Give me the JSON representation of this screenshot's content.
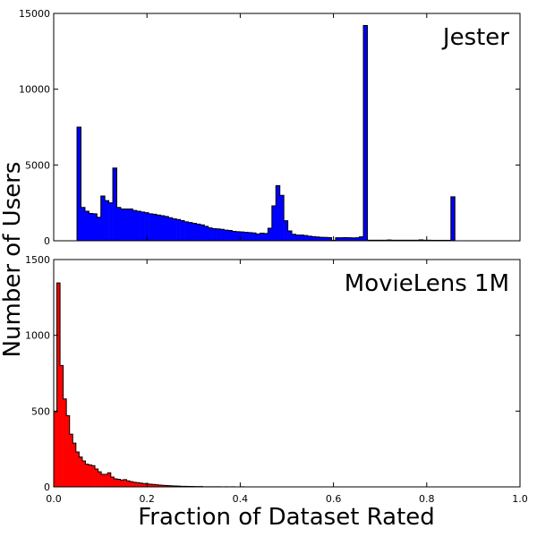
{
  "chart_data": [
    {
      "type": "bar",
      "subtype": "histogram",
      "annotation": "Jester",
      "color": "#0000ff",
      "bin_start": 0.05,
      "bin_width": 0.00853,
      "values": [
        7500,
        2200,
        1950,
        1800,
        1780,
        1550,
        2950,
        2650,
        2500,
        4800,
        2200,
        2100,
        2100,
        2100,
        2000,
        1950,
        1900,
        1850,
        1780,
        1750,
        1700,
        1650,
        1600,
        1520,
        1450,
        1400,
        1330,
        1250,
        1200,
        1150,
        1100,
        1050,
        950,
        850,
        800,
        780,
        750,
        700,
        680,
        620,
        600,
        580,
        560,
        540,
        520,
        450,
        500,
        480,
        830,
        2300,
        3640,
        3000,
        1320,
        650,
        430,
        380,
        380,
        350,
        300,
        270,
        250,
        230,
        220,
        210,
        30,
        200,
        200,
        210,
        200,
        190,
        200,
        260,
        14200,
        40,
        40,
        40,
        40,
        40,
        50,
        40,
        40,
        40,
        40,
        40,
        40,
        40,
        60,
        40,
        40,
        30,
        30,
        30,
        30,
        30,
        2900
      ],
      "xlim": [
        0,
        1.0
      ],
      "ylim": [
        0,
        15000
      ],
      "yticks": [
        "0",
        "5000",
        "10000",
        "15000"
      ],
      "ytick_values": [
        0,
        5000,
        10000,
        15000
      ]
    },
    {
      "type": "bar",
      "subtype": "histogram",
      "annotation": "MovieLens 1M",
      "color": "#ff0000",
      "bin_start": 0.0,
      "bin_width": 0.0068,
      "values": [
        496,
        1346,
        801,
        580,
        470,
        348,
        289,
        230,
        197,
        171,
        150,
        145,
        140,
        118,
        100,
        83,
        83,
        93,
        65,
        53,
        50,
        45,
        48,
        40,
        35,
        30,
        28,
        25,
        22,
        20,
        18,
        16,
        14,
        12,
        10,
        9,
        8,
        7,
        6,
        5,
        4,
        4,
        3,
        3,
        2,
        2,
        2,
        1,
        1,
        1,
        1,
        1,
        1,
        0,
        1,
        0,
        1,
        0,
        0,
        1
      ],
      "xlim": [
        0,
        1.0
      ],
      "ylim": [
        0,
        1500
      ],
      "yticks": [
        "0",
        "500",
        "1000",
        "1500"
      ],
      "ytick_values": [
        0,
        500,
        1000,
        1500
      ]
    }
  ],
  "xticks": [
    "0.0",
    "0.2",
    "0.4",
    "0.6",
    "0.8",
    "1.0"
  ],
  "xtick_values": [
    0,
    0.2,
    0.4,
    0.6,
    0.8,
    1.0
  ],
  "xlabel": "Fraction of Dataset Rated",
  "ylabel": "Number of Users"
}
